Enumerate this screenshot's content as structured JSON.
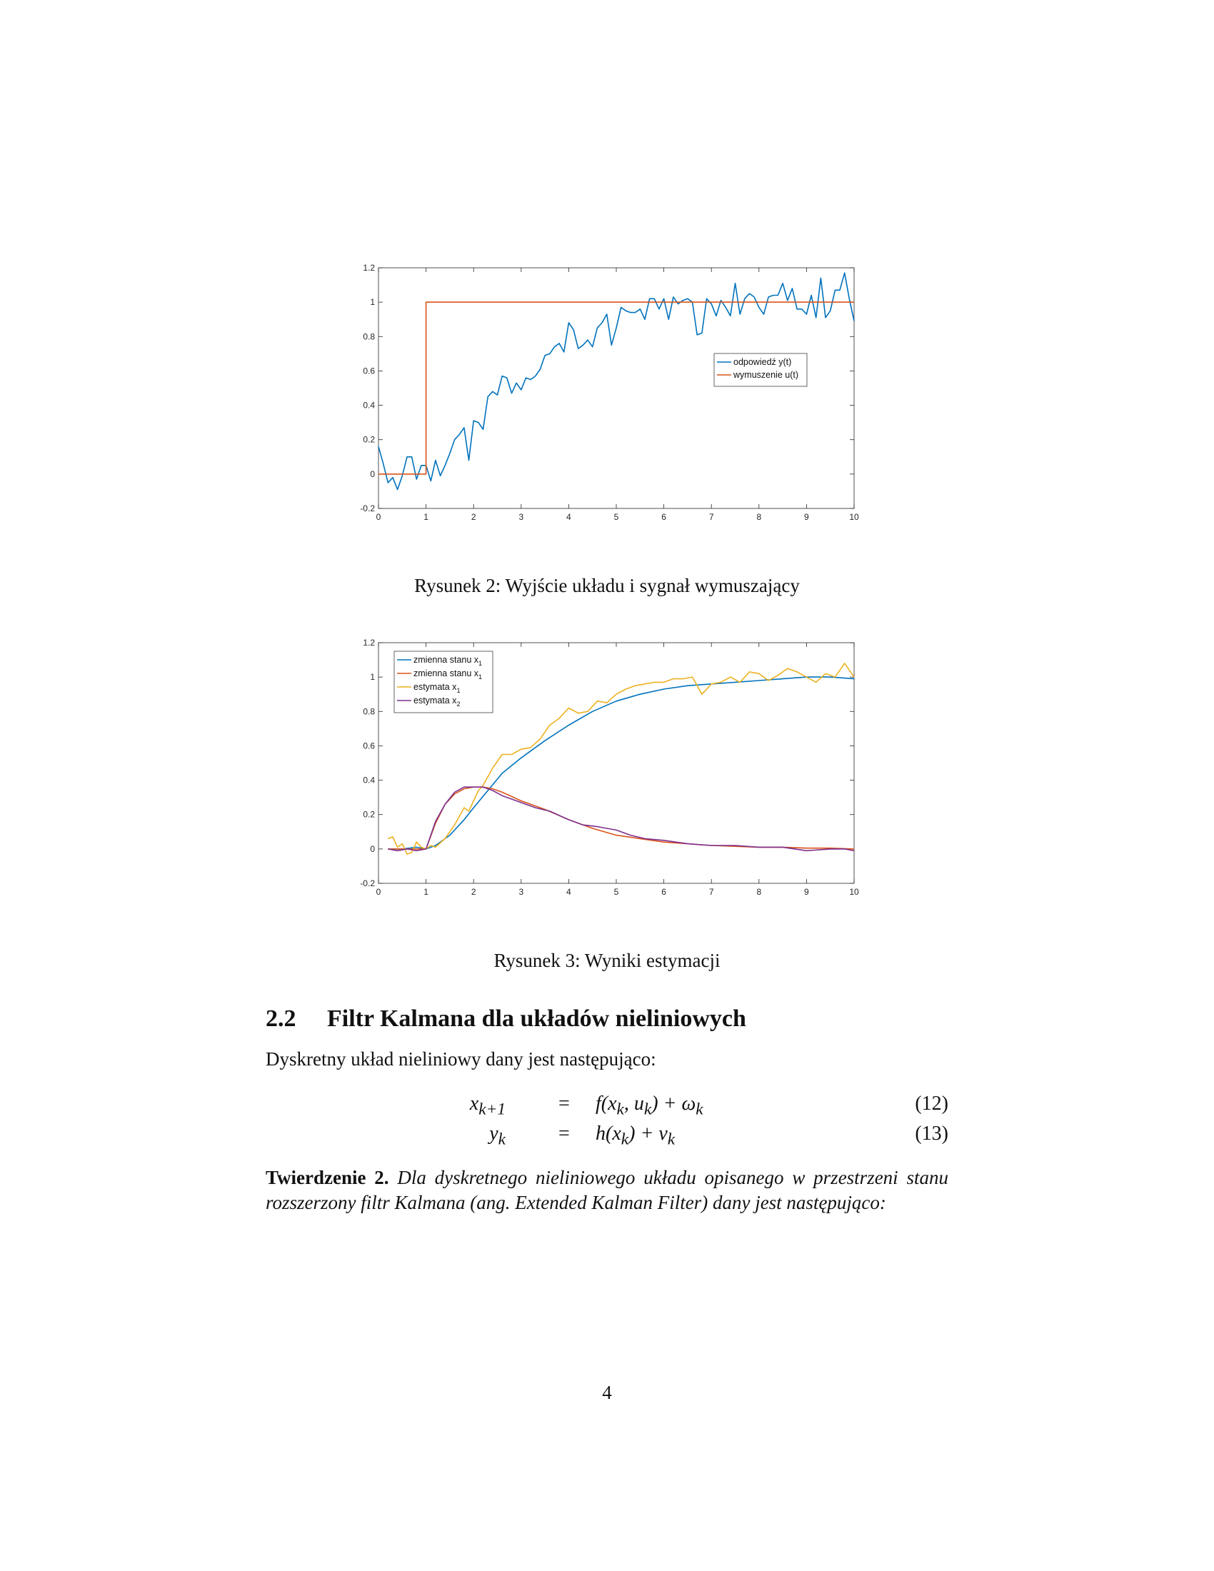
{
  "figures": [
    {
      "caption": "Rysunek 2: Wyjście układu i sygnał wymuszający",
      "chart_data": {
        "type": "line",
        "xlim": [
          0,
          10
        ],
        "ylim": [
          -0.2,
          1.2
        ],
        "xticks": [
          0,
          1,
          2,
          3,
          4,
          5,
          6,
          7,
          8,
          9,
          10
        ],
        "yticks": [
          -0.2,
          0,
          0.2,
          0.4,
          0.6,
          0.8,
          1,
          1.2
        ],
        "grid": false,
        "legend_position": "upper-right",
        "series": [
          {
            "name": "odpowiedź y(t)",
            "color": "#0072BD",
            "x": [
              0,
              0.1,
              0.2,
              0.3,
              0.4,
              0.5,
              0.6,
              0.7,
              0.8,
              0.9,
              1.0,
              1.1,
              1.2,
              1.3,
              1.4,
              1.5,
              1.6,
              1.7,
              1.8,
              1.9,
              2.0,
              2.1,
              2.2,
              2.3,
              2.4,
              2.5,
              2.6,
              2.7,
              2.8,
              2.9,
              3.0,
              3.1,
              3.2,
              3.3,
              3.4,
              3.5,
              3.6,
              3.7,
              3.8,
              3.9,
              4.0,
              4.1,
              4.2,
              4.3,
              4.4,
              4.5,
              4.6,
              4.7,
              4.8,
              4.9,
              5.0,
              5.1,
              5.2,
              5.3,
              5.4,
              5.5,
              5.6,
              5.7,
              5.8,
              5.9,
              6.0,
              6.1,
              6.2,
              6.3,
              6.4,
              6.5,
              6.6,
              6.7,
              6.8,
              6.9,
              7.0,
              7.1,
              7.2,
              7.3,
              7.4,
              7.5,
              7.6,
              7.7,
              7.8,
              7.9,
              8.0,
              8.1,
              8.2,
              8.3,
              8.4,
              8.5,
              8.6,
              8.7,
              8.8,
              8.9,
              9.0,
              9.1,
              9.2,
              9.3,
              9.4,
              9.5,
              9.6,
              9.7,
              9.8,
              9.9,
              10.0
            ],
            "y": [
              0.16,
              0.06,
              -0.05,
              -0.02,
              -0.09,
              -0.01,
              0.1,
              0.1,
              -0.03,
              0.05,
              0.05,
              -0.04,
              0.08,
              -0.01,
              0.05,
              0.12,
              0.2,
              0.23,
              0.27,
              0.08,
              0.31,
              0.3,
              0.26,
              0.45,
              0.48,
              0.46,
              0.57,
              0.56,
              0.47,
              0.53,
              0.49,
              0.56,
              0.55,
              0.57,
              0.61,
              0.69,
              0.7,
              0.74,
              0.76,
              0.71,
              0.88,
              0.84,
              0.73,
              0.75,
              0.78,
              0.74,
              0.85,
              0.88,
              0.93,
              0.75,
              0.85,
              0.97,
              0.95,
              0.94,
              0.94,
              0.96,
              0.9,
              1.02,
              1.02,
              0.96,
              1.02,
              0.9,
              1.03,
              0.99,
              1.01,
              1.02,
              1.0,
              0.81,
              0.82,
              1.02,
              0.99,
              0.92,
              1.01,
              0.97,
              0.92,
              1.11,
              0.93,
              1.02,
              1.05,
              1.03,
              0.97,
              0.93,
              1.03,
              1.04,
              1.04,
              1.11,
              1.01,
              1.08,
              0.96,
              0.96,
              0.93,
              1.04,
              0.91,
              1.14,
              0.91,
              0.95,
              1.07,
              1.07,
              1.17,
              1.02,
              0.89
            ]
          },
          {
            "name": "wymuszenie u(t)",
            "color": "#D95319",
            "x": [
              0,
              1,
              1,
              10
            ],
            "y": [
              0,
              0,
              1,
              1
            ]
          }
        ]
      }
    },
    {
      "caption": "Rysunek 3: Wyniki estymacji",
      "chart_data": {
        "type": "line",
        "xlim": [
          0,
          10
        ],
        "ylim": [
          -0.2,
          1.2
        ],
        "xticks": [
          0,
          1,
          2,
          3,
          4,
          5,
          6,
          7,
          8,
          9,
          10
        ],
        "yticks": [
          -0.2,
          0,
          0.2,
          0.4,
          0.6,
          0.8,
          1,
          1.2
        ],
        "grid": false,
        "legend_position": "upper-left",
        "series": [
          {
            "name": "zmienna stanu x",
            "name_subscript": "1",
            "color": "#0072BD",
            "x": [
              0.2,
              0.5,
              0.8,
              1.0,
              1.2,
              1.5,
              1.8,
              2.0,
              2.3,
              2.6,
              3.0,
              3.5,
              4.0,
              4.5,
              5.0,
              5.5,
              6.0,
              6.5,
              7.0,
              7.5,
              8.0,
              8.5,
              9.0,
              9.5,
              10.0
            ],
            "y": [
              0,
              0,
              0.01,
              0,
              0.02,
              0.08,
              0.17,
              0.24,
              0.34,
              0.44,
              0.53,
              0.63,
              0.72,
              0.8,
              0.86,
              0.9,
              0.93,
              0.95,
              0.96,
              0.97,
              0.98,
              0.99,
              1.0,
              1.0,
              0.99
            ]
          },
          {
            "name": "zmienna stanu x",
            "name_subscript": "1",
            "color": "#D95319",
            "x": [
              0.2,
              0.5,
              0.8,
              1.0,
              1.2,
              1.4,
              1.6,
              1.8,
              2.0,
              2.2,
              2.4,
              2.6,
              3.0,
              3.5,
              4.0,
              4.5,
              5.0,
              5.5,
              6.0,
              6.5,
              7.0,
              7.5,
              8.0,
              8.5,
              9.0,
              9.5,
              10.0
            ],
            "y": [
              0,
              0,
              0,
              0,
              0.15,
              0.26,
              0.32,
              0.35,
              0.36,
              0.36,
              0.35,
              0.33,
              0.28,
              0.23,
              0.17,
              0.12,
              0.08,
              0.06,
              0.04,
              0.03,
              0.02,
              0.015,
              0.01,
              0.01,
              0.005,
              0.005,
              0.0
            ]
          },
          {
            "name": "estymata x",
            "name_subscript": "1",
            "color": "#EDB120",
            "x": [
              0.2,
              0.3,
              0.4,
              0.5,
              0.6,
              0.7,
              0.8,
              0.9,
              1.0,
              1.1,
              1.2,
              1.4,
              1.6,
              1.8,
              1.9,
              2.0,
              2.1,
              2.2,
              2.4,
              2.6,
              2.8,
              3.0,
              3.2,
              3.4,
              3.6,
              3.8,
              4.0,
              4.2,
              4.4,
              4.6,
              4.8,
              5.0,
              5.2,
              5.4,
              5.6,
              5.8,
              6.0,
              6.2,
              6.4,
              6.6,
              6.8,
              7.0,
              7.2,
              7.4,
              7.6,
              7.8,
              8.0,
              8.2,
              8.4,
              8.6,
              8.8,
              9.0,
              9.2,
              9.4,
              9.6,
              9.8,
              10.0
            ],
            "y": [
              0.06,
              0.07,
              0.01,
              0.03,
              -0.03,
              -0.02,
              0.04,
              0.01,
              0.0,
              0.02,
              0.01,
              0.06,
              0.14,
              0.24,
              0.22,
              0.28,
              0.34,
              0.37,
              0.47,
              0.55,
              0.55,
              0.58,
              0.59,
              0.64,
              0.72,
              0.76,
              0.82,
              0.79,
              0.8,
              0.86,
              0.85,
              0.9,
              0.93,
              0.95,
              0.96,
              0.97,
              0.97,
              0.99,
              0.99,
              1.0,
              0.9,
              0.96,
              0.97,
              1.0,
              0.97,
              1.03,
              1.02,
              0.98,
              1.01,
              1.05,
              1.03,
              1.0,
              0.97,
              1.02,
              1.0,
              1.08,
              1.0
            ]
          },
          {
            "name": "estymata x",
            "name_subscript": "2",
            "color": "#7E2F8E",
            "x": [
              0.2,
              0.4,
              0.6,
              0.8,
              1.0,
              1.2,
              1.4,
              1.6,
              1.8,
              2.0,
              2.2,
              2.4,
              2.6,
              3.0,
              3.3,
              3.6,
              4.0,
              4.3,
              4.6,
              5.0,
              5.3,
              5.6,
              6.0,
              6.5,
              7.0,
              7.5,
              8.0,
              8.5,
              9.0,
              9.5,
              9.8,
              10.0
            ],
            "y": [
              0.0,
              -0.01,
              0.0,
              -0.01,
              0.0,
              0.16,
              0.26,
              0.33,
              0.36,
              0.36,
              0.36,
              0.34,
              0.31,
              0.27,
              0.24,
              0.22,
              0.17,
              0.14,
              0.13,
              0.11,
              0.08,
              0.06,
              0.05,
              0.03,
              0.02,
              0.02,
              0.01,
              0.01,
              -0.01,
              0.0,
              0.0,
              -0.01
            ]
          }
        ]
      }
    }
  ],
  "section": {
    "number": "2.2",
    "title": "Filtr Kalmana dla układów nieliniowych"
  },
  "intro_text": "Dyskretny układ nieliniowy dany jest następująco:",
  "equations": [
    {
      "lhs": "x",
      "lhs_sub": "k+1",
      "rel": "=",
      "rhs_pre": "f",
      "rhs_mid": "(x",
      "rhs_mid_sub": "k",
      "rhs_sep": ", u",
      "rhs_sep_sub": "k",
      "rhs_post": ") + ω",
      "rhs_post_sub": "k",
      "number": "(12)"
    },
    {
      "lhs": "y",
      "lhs_sub": "k",
      "rel": "=",
      "rhs_pre": "h",
      "rhs_mid": "(x",
      "rhs_mid_sub": "k",
      "rhs_sep": "",
      "rhs_sep_sub": "",
      "rhs_post": ") + ν",
      "rhs_post_sub": "k",
      "number": "(13)"
    }
  ],
  "theorem": {
    "label": "Twierdzenie 2.",
    "body": "Dla dyskretnego nieliniowego układu opisanego w przestrzeni stanu rozszerzony filtr Kalmana (ang. Extended Kalman Filter) dany jest następująco:"
  },
  "page_number": "4"
}
